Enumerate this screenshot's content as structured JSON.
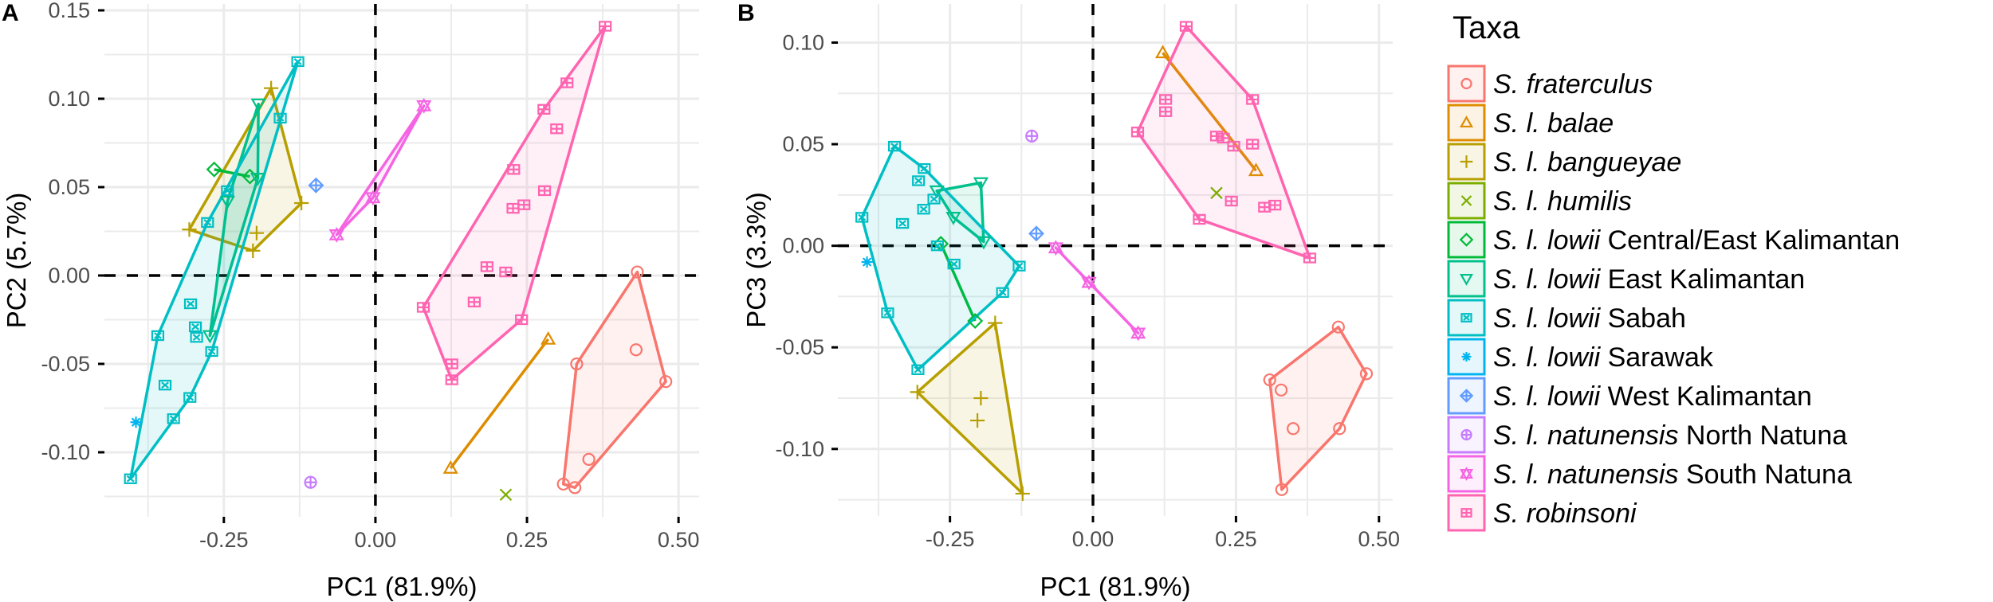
{
  "chart_data": {
    "type": "scatter",
    "legend": {
      "title": "Taxa",
      "placement": "right",
      "items": [
        {
          "italic": "S. fraterculus",
          "suffix": "",
          "color": "#F8766D",
          "shape": "circle"
        },
        {
          "italic": "S. l. balae",
          "suffix": "",
          "color": "#DE8C00",
          "shape": "triangle"
        },
        {
          "italic": "S. l. bangueyae",
          "suffix": "",
          "color": "#B79F00",
          "shape": "plus"
        },
        {
          "italic": "S. l. humilis",
          "suffix": "",
          "color": "#7CAE00",
          "shape": "cross"
        },
        {
          "italic": "S. l. lowii",
          "suffix": " Central/East Kalimantan",
          "color": "#00BA38",
          "shape": "diamond"
        },
        {
          "italic": "S. l. lowii",
          "suffix": " East Kalimantan",
          "color": "#00C08B",
          "shape": "triangle-down"
        },
        {
          "italic": "S. l. lowii",
          "suffix": " Sabah",
          "color": "#00BFC4",
          "shape": "square-cross"
        },
        {
          "italic": "S. l. lowii",
          "suffix": " Sarawak",
          "color": "#00B4F0",
          "shape": "asterisk"
        },
        {
          "italic": "S. l. lowii",
          "suffix": " West Kalimantan",
          "color": "#619CFF",
          "shape": "diamond-plus"
        },
        {
          "italic": "S. l. natunensis",
          "suffix": " North Natuna",
          "color": "#C77CFF",
          "shape": "circle-plus"
        },
        {
          "italic": "S. l. natunensis",
          "suffix": " South Natuna",
          "color": "#F564E3",
          "shape": "star-of-david"
        },
        {
          "italic": "S. robinsoni",
          "suffix": "",
          "color": "#FF64B0",
          "shape": "square-plus"
        }
      ]
    },
    "panels": [
      {
        "tag": "A",
        "xlabel": "PC1 (81.9%)",
        "ylabel": "PC2 (5.7%)",
        "xlim": [
          -0.447,
          0.534
        ],
        "ylim": [
          -0.1365,
          0.1536
        ],
        "xticks": [
          -0.25,
          0,
          0.25,
          0.5
        ],
        "xtick_labels": [
          "-0.25",
          "0.00",
          "0.25",
          "0.50"
        ],
        "yticks": [
          -0.1,
          -0.05,
          0,
          0.05,
          0.1,
          0.15
        ],
        "ytick_labels": [
          "-0.10",
          "-0.05",
          "0.00",
          "0.05",
          "0.10",
          "0.15"
        ],
        "reference_lines": {
          "x": 0,
          "y": 0
        },
        "grid": true,
        "series": [
          [
            [
              0.432,
              0.002
            ],
            [
              0.43,
              -0.042
            ],
            [
              0.479,
              -0.06
            ],
            [
              0.332,
              -0.05
            ],
            [
              0.352,
              -0.104
            ],
            [
              0.31,
              -0.118
            ],
            [
              0.329,
              -0.12
            ]
          ],
          [
            [
              0.285,
              -0.036
            ],
            [
              0.124,
              -0.109
            ]
          ],
          [
            [
              -0.172,
              0.106
            ],
            [
              -0.307,
              0.026
            ],
            [
              -0.202,
              0.014
            ],
            [
              -0.196,
              0.024
            ],
            [
              -0.122,
              0.041
            ]
          ],
          [
            [
              0.215,
              -0.124
            ]
          ],
          [
            [
              -0.266,
              0.06
            ],
            [
              -0.207,
              0.056
            ]
          ],
          [
            [
              -0.193,
              0.097
            ],
            [
              -0.194,
              0.055
            ],
            [
              -0.244,
              0.042
            ],
            [
              -0.273,
              -0.034
            ]
          ],
          [
            [
              -0.128,
              0.121
            ],
            [
              -0.157,
              0.089
            ],
            [
              -0.244,
              0.048
            ],
            [
              -0.277,
              0.03
            ],
            [
              -0.305,
              -0.016
            ],
            [
              -0.297,
              -0.029
            ],
            [
              -0.295,
              -0.035
            ],
            [
              -0.27,
              -0.043
            ],
            [
              -0.359,
              -0.034
            ],
            [
              -0.347,
              -0.062
            ],
            [
              -0.306,
              -0.069
            ],
            [
              -0.333,
              -0.081
            ],
            [
              -0.404,
              -0.115
            ]
          ],
          [
            [
              -0.395,
              -0.083
            ]
          ],
          [
            [
              -0.098,
              0.051
            ]
          ],
          [
            [
              -0.107,
              -0.117
            ]
          ],
          [
            [
              0.08,
              0.096
            ],
            [
              -0.004,
              0.044
            ],
            [
              -0.064,
              0.023
            ]
          ],
          [
            [
              0.379,
              0.141
            ],
            [
              0.316,
              0.109
            ],
            [
              0.278,
              0.094
            ],
            [
              0.299,
              0.083
            ],
            [
              0.228,
              0.06
            ],
            [
              0.279,
              0.048
            ],
            [
              0.227,
              0.038
            ],
            [
              0.245,
              0.04
            ],
            [
              0.184,
              0.005
            ],
            [
              0.215,
              0.002
            ],
            [
              0.163,
              -0.015
            ],
            [
              0.079,
              -0.018
            ],
            [
              0.241,
              -0.025
            ],
            [
              0.126,
              -0.05
            ],
            [
              0.126,
              -0.059
            ]
          ]
        ]
      },
      {
        "tag": "B",
        "xlabel": "PC1 (81.9%)",
        "ylabel": "PC3 (3.3%)",
        "xlim": [
          -0.446,
          0.524
        ],
        "ylim": [
          -0.133,
          0.119
        ],
        "xticks": [
          -0.25,
          0,
          0.25,
          0.5
        ],
        "xtick_labels": [
          "-0.25",
          "0.00",
          "0.25",
          "0.50"
        ],
        "yticks": [
          -0.1,
          -0.05,
          0,
          0.05,
          0.1
        ],
        "ytick_labels": [
          "-0.10",
          "-0.05",
          "0.00",
          "0.05",
          "0.10"
        ],
        "reference_lines": {
          "x": 0,
          "y": 0
        },
        "grid": true,
        "series": [
          [
            [
              0.309,
              -0.066
            ],
            [
              0.329,
              -0.071
            ],
            [
              0.35,
              -0.09
            ],
            [
              0.33,
              -0.12
            ],
            [
              0.431,
              -0.09
            ],
            [
              0.478,
              -0.063
            ],
            [
              0.429,
              -0.04
            ]
          ],
          [
            [
              0.122,
              0.095
            ],
            [
              0.285,
              0.037
            ]
          ],
          [
            [
              -0.171,
              -0.038
            ],
            [
              -0.307,
              -0.072
            ],
            [
              -0.196,
              -0.075
            ],
            [
              -0.202,
              -0.086
            ],
            [
              -0.123,
              -0.122
            ]
          ],
          [
            [
              0.216,
              0.026
            ]
          ],
          [
            [
              -0.266,
              0.001
            ],
            [
              -0.206,
              -0.037
            ]
          ],
          [
            [
              -0.196,
              0.031
            ],
            [
              -0.273,
              0.027
            ],
            [
              -0.244,
              0.014
            ],
            [
              -0.191,
              0.002
            ]
          ],
          [
            [
              -0.347,
              0.049
            ],
            [
              -0.295,
              0.038
            ],
            [
              -0.305,
              0.032
            ],
            [
              -0.404,
              0.014
            ],
            [
              -0.333,
              0.011
            ],
            [
              -0.296,
              0.018
            ],
            [
              -0.278,
              0.023
            ],
            [
              -0.272,
              0.0
            ],
            [
              -0.243,
              -0.009
            ],
            [
              -0.129,
              -0.01
            ],
            [
              -0.158,
              -0.023
            ],
            [
              -0.359,
              -0.033
            ],
            [
              -0.306,
              -0.061
            ]
          ],
          [
            [
              -0.395,
              -0.008
            ]
          ],
          [
            [
              -0.099,
              0.006
            ]
          ],
          [
            [
              -0.107,
              0.054
            ]
          ],
          [
            [
              -0.065,
              -0.001
            ],
            [
              -0.007,
              -0.018
            ],
            [
              0.079,
              -0.043
            ]
          ],
          [
            [
              0.163,
              0.108
            ],
            [
              0.127,
              0.072
            ],
            [
              0.127,
              0.066
            ],
            [
              0.078,
              0.056
            ],
            [
              0.279,
              0.072
            ],
            [
              0.279,
              0.05
            ],
            [
              0.216,
              0.054
            ],
            [
              0.228,
              0.053
            ],
            [
              0.246,
              0.049
            ],
            [
              0.242,
              0.022
            ],
            [
              0.3,
              0.019
            ],
            [
              0.318,
              0.02
            ],
            [
              0.186,
              0.013
            ],
            [
              0.379,
              -0.006
            ]
          ]
        ]
      }
    ]
  }
}
